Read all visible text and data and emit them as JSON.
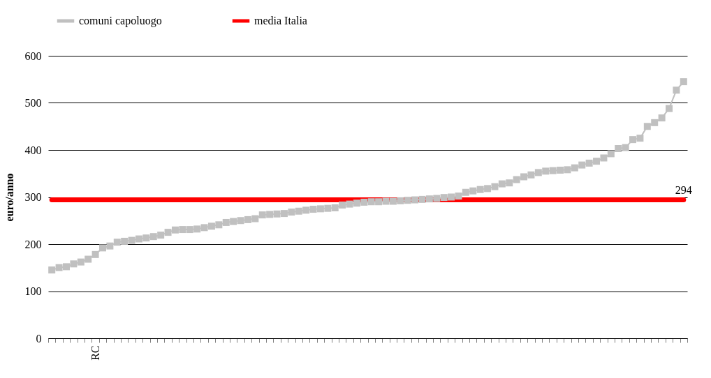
{
  "chart_data": {
    "type": "line",
    "ylabel": "euro/anno",
    "ylim": [
      0,
      600
    ],
    "yticks": [
      0,
      100,
      200,
      300,
      400,
      500,
      600
    ],
    "grid": "y",
    "legend": "top",
    "categories": [
      null,
      null,
      null,
      null,
      null,
      null,
      "RC",
      null,
      null,
      null,
      null,
      null,
      null,
      null,
      null,
      null,
      null,
      null,
      null,
      null,
      null,
      null,
      null,
      null,
      null,
      null,
      null,
      null,
      null,
      null,
      null,
      null,
      null,
      null,
      null,
      null,
      null,
      null,
      null,
      null,
      null,
      null,
      null,
      null,
      null,
      null,
      null,
      null,
      null,
      null,
      null,
      null,
      null,
      null,
      null,
      null,
      null,
      null,
      null,
      null,
      null,
      null,
      null,
      null,
      null,
      null,
      null,
      null,
      null,
      null,
      null,
      null,
      null,
      null,
      null,
      null,
      null,
      null,
      null,
      null,
      null,
      null,
      null,
      null,
      null,
      null,
      null,
      null
    ],
    "series": [
      {
        "name": "comuni capoluogo",
        "color": "#c0c0c0",
        "marker": "square",
        "values": [
          145,
          150,
          152,
          158,
          162,
          168,
          178,
          192,
          196,
          204,
          206,
          208,
          211,
          213,
          216,
          219,
          225,
          230,
          231,
          231,
          232,
          235,
          238,
          241,
          246,
          248,
          250,
          252,
          254,
          262,
          263,
          264,
          265,
          268,
          270,
          272,
          274,
          275,
          276,
          277,
          283,
          285,
          287,
          289,
          290,
          290,
          291,
          291,
          292,
          293,
          294,
          295,
          296,
          297,
          299,
          300,
          302,
          310,
          313,
          316,
          318,
          322,
          328,
          330,
          337,
          343,
          347,
          352,
          355,
          356,
          357,
          358,
          362,
          368,
          372,
          376,
          383,
          392,
          403,
          405,
          422,
          425,
          450,
          458,
          468,
          488,
          527,
          545
        ]
      },
      {
        "name": "media Italia",
        "color": "#ff0000",
        "values": [
          294,
          294,
          294,
          294,
          294,
          294,
          294,
          294,
          294,
          294,
          294,
          294,
          294,
          294,
          294,
          294,
          294,
          294,
          294,
          294,
          294,
          294,
          294,
          294,
          294,
          294,
          294,
          294,
          294,
          294,
          294,
          294,
          294,
          294,
          294,
          294,
          294,
          294,
          294,
          294,
          294,
          294,
          294,
          294,
          294,
          294,
          294,
          294,
          294,
          294,
          294,
          294,
          294,
          294,
          294,
          294,
          294,
          294,
          294,
          294,
          294,
          294,
          294,
          294,
          294,
          294,
          294,
          294,
          294,
          294,
          294,
          294,
          294,
          294,
          294,
          294,
          294,
          294,
          294,
          294,
          294,
          294,
          294,
          294,
          294,
          294,
          294,
          294
        ],
        "value_labels": [
          null,
          null,
          null,
          null,
          null,
          null,
          null,
          null,
          null,
          null,
          null,
          null,
          null,
          null,
          null,
          null,
          null,
          null,
          null,
          null,
          null,
          null,
          null,
          null,
          null,
          null,
          null,
          null,
          null,
          null,
          null,
          null,
          null,
          null,
          null,
          null,
          null,
          null,
          null,
          null,
          null,
          null,
          null,
          null,
          null,
          null,
          null,
          null,
          null,
          null,
          null,
          null,
          null,
          null,
          null,
          null,
          null,
          null,
          null,
          null,
          null,
          null,
          null,
          null,
          null,
          null,
          null,
          null,
          null,
          null,
          null,
          null,
          null,
          null,
          null,
          null,
          null,
          null,
          null,
          null,
          null,
          null,
          null,
          null,
          null,
          null,
          null,
          "294"
        ]
      }
    ]
  }
}
